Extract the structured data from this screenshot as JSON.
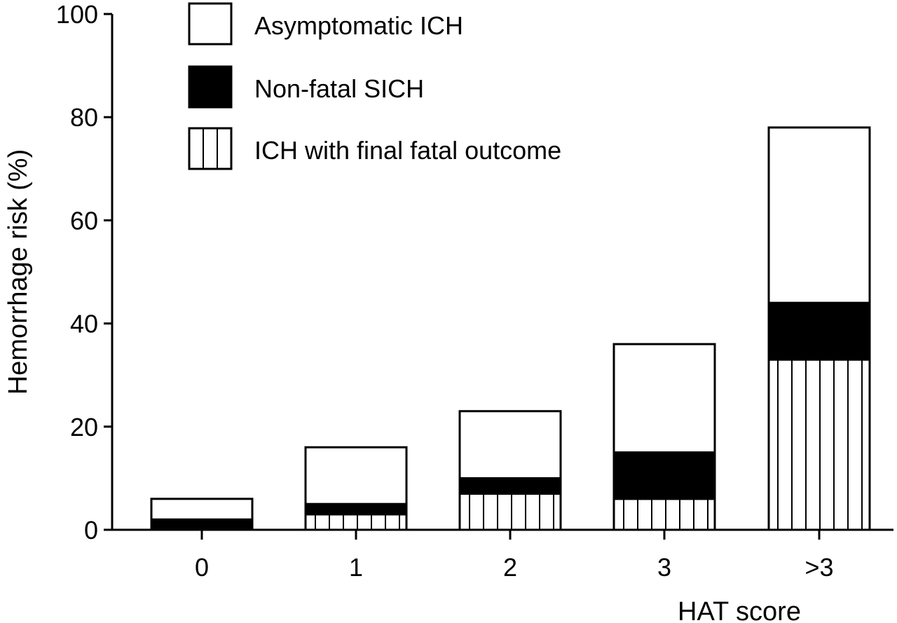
{
  "chart_data": {
    "type": "bar",
    "stacked": true,
    "title": "",
    "xlabel": "HAT score",
    "ylabel": "Hemorrhage risk (%)",
    "ylim": [
      0,
      100
    ],
    "yticks": [
      0,
      20,
      40,
      60,
      80,
      100
    ],
    "grid": false,
    "legend_position": "top-left",
    "categories": [
      "0",
      "1",
      "2",
      "3",
      ">3"
    ],
    "series": [
      {
        "name": "ICH with final fatal outcome",
        "pattern": "vertical-stripes",
        "color": "#ffffff",
        "values": [
          0,
          3,
          7,
          6,
          33
        ]
      },
      {
        "name": "Non-fatal SICH",
        "pattern": "solid",
        "color": "#000000",
        "values": [
          2,
          2,
          3,
          9,
          11
        ]
      },
      {
        "name": "Asymptomatic ICH",
        "pattern": "empty",
        "color": "#ffffff",
        "values": [
          4,
          11,
          13,
          21,
          34
        ]
      }
    ],
    "legend_order": [
      "Asymptomatic ICH",
      "Non-fatal SICH",
      "ICH with final fatal outcome"
    ]
  }
}
